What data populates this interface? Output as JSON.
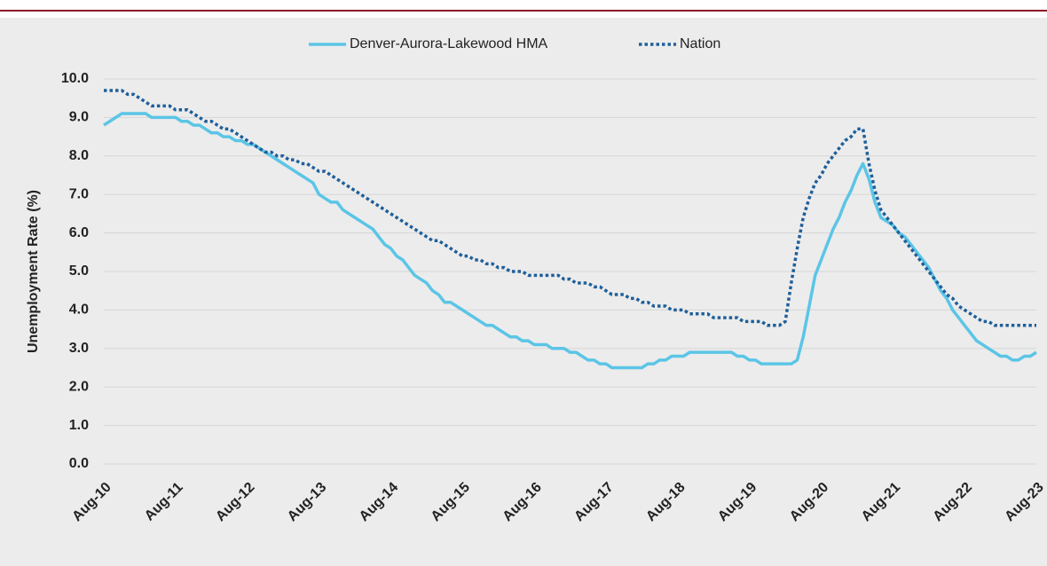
{
  "chart_data": {
    "type": "line",
    "y_label": "Unemployment Rate (%)",
    "categories": [
      "Aug-10",
      null,
      null,
      null,
      null,
      null,
      null,
      null,
      null,
      null,
      null,
      null,
      "Aug-11",
      null,
      null,
      null,
      null,
      null,
      null,
      null,
      null,
      null,
      null,
      null,
      "Aug-12",
      null,
      null,
      null,
      null,
      null,
      null,
      null,
      null,
      null,
      null,
      null,
      "Aug-13",
      null,
      null,
      null,
      null,
      null,
      null,
      null,
      null,
      null,
      null,
      null,
      "Aug-14",
      null,
      null,
      null,
      null,
      null,
      null,
      null,
      null,
      null,
      null,
      null,
      "Aug-15",
      null,
      null,
      null,
      null,
      null,
      null,
      null,
      null,
      null,
      null,
      null,
      "Aug-16",
      null,
      null,
      null,
      null,
      null,
      null,
      null,
      null,
      null,
      null,
      null,
      "Aug-17",
      null,
      null,
      null,
      null,
      null,
      null,
      null,
      null,
      null,
      null,
      null,
      "Aug-18",
      null,
      null,
      null,
      null,
      null,
      null,
      null,
      null,
      null,
      null,
      null,
      "Aug-19",
      null,
      null,
      null,
      null,
      null,
      null,
      null,
      null,
      null,
      null,
      null,
      "Aug-20",
      null,
      null,
      null,
      null,
      null,
      null,
      null,
      null,
      null,
      null,
      null,
      "Aug-21",
      null,
      null,
      null,
      null,
      null,
      null,
      null,
      null,
      null,
      null,
      null,
      "Aug-22",
      null,
      null,
      null,
      null,
      null,
      null,
      null,
      null,
      null,
      null,
      null,
      "Aug-23"
    ],
    "series": [
      {
        "name": "Denver-Aurora-Lakewood HMA",
        "color": "#5bc5e6",
        "style": "solid",
        "values": [
          8.8,
          8.9,
          9.0,
          9.1,
          9.1,
          9.1,
          9.1,
          9.1,
          9.0,
          9.0,
          9.0,
          9.0,
          9.0,
          8.9,
          8.9,
          8.8,
          8.8,
          8.7,
          8.6,
          8.6,
          8.5,
          8.5,
          8.4,
          8.4,
          8.3,
          8.3,
          8.2,
          8.1,
          8.0,
          7.9,
          7.8,
          7.7,
          7.6,
          7.5,
          7.4,
          7.3,
          7.0,
          6.9,
          6.8,
          6.8,
          6.6,
          6.5,
          6.4,
          6.3,
          6.2,
          6.1,
          5.9,
          5.7,
          5.6,
          5.4,
          5.3,
          5.1,
          4.9,
          4.8,
          4.7,
          4.5,
          4.4,
          4.2,
          4.2,
          4.1,
          4.0,
          3.9,
          3.8,
          3.7,
          3.6,
          3.6,
          3.5,
          3.4,
          3.3,
          3.3,
          3.2,
          3.2,
          3.1,
          3.1,
          3.1,
          3.0,
          3.0,
          3.0,
          2.9,
          2.9,
          2.8,
          2.7,
          2.7,
          2.6,
          2.6,
          2.5,
          2.5,
          2.5,
          2.5,
          2.5,
          2.5,
          2.6,
          2.6,
          2.7,
          2.7,
          2.8,
          2.8,
          2.8,
          2.9,
          2.9,
          2.9,
          2.9,
          2.9,
          2.9,
          2.9,
          2.9,
          2.8,
          2.8,
          2.7,
          2.7,
          2.6,
          2.6,
          2.6,
          2.6,
          2.6,
          2.6,
          2.7,
          3.3,
          4.1,
          4.9,
          5.3,
          5.7,
          6.1,
          6.4,
          6.8,
          7.1,
          7.5,
          7.8,
          7.4,
          6.8,
          6.4,
          6.3,
          6.2,
          6.0,
          5.9,
          5.7,
          5.5,
          5.3,
          5.1,
          4.8,
          4.5,
          4.3,
          4.0,
          3.8,
          3.6,
          3.4,
          3.2,
          3.1,
          3.0,
          2.9,
          2.8,
          2.8,
          2.7,
          2.7,
          2.8,
          2.8,
          2.9
        ]
      },
      {
        "name": "Nation",
        "color": "#1f5f9a",
        "style": "dotted",
        "values": [
          9.7,
          9.7,
          9.7,
          9.7,
          9.6,
          9.6,
          9.5,
          9.4,
          9.3,
          9.3,
          9.3,
          9.3,
          9.2,
          9.2,
          9.2,
          9.1,
          9.0,
          8.9,
          8.9,
          8.8,
          8.7,
          8.7,
          8.6,
          8.5,
          8.4,
          8.3,
          8.2,
          8.1,
          8.1,
          8.0,
          8.0,
          7.9,
          7.9,
          7.8,
          7.8,
          7.7,
          7.6,
          7.6,
          7.5,
          7.4,
          7.3,
          7.2,
          7.1,
          7.0,
          6.9,
          6.8,
          6.7,
          6.6,
          6.5,
          6.4,
          6.3,
          6.2,
          6.1,
          6.0,
          5.9,
          5.8,
          5.8,
          5.7,
          5.6,
          5.5,
          5.4,
          5.4,
          5.3,
          5.3,
          5.2,
          5.2,
          5.1,
          5.1,
          5.0,
          5.0,
          5.0,
          4.9,
          4.9,
          4.9,
          4.9,
          4.9,
          4.9,
          4.8,
          4.8,
          4.7,
          4.7,
          4.7,
          4.6,
          4.6,
          4.5,
          4.4,
          4.4,
          4.4,
          4.3,
          4.3,
          4.2,
          4.2,
          4.1,
          4.1,
          4.1,
          4.0,
          4.0,
          4.0,
          3.9,
          3.9,
          3.9,
          3.9,
          3.8,
          3.8,
          3.8,
          3.8,
          3.8,
          3.7,
          3.7,
          3.7,
          3.7,
          3.6,
          3.6,
          3.6,
          3.7,
          4.7,
          5.6,
          6.4,
          6.9,
          7.3,
          7.5,
          7.8,
          8.0,
          8.2,
          8.4,
          8.5,
          8.7,
          8.7,
          7.8,
          7.1,
          6.6,
          6.4,
          6.2,
          6.0,
          5.8,
          5.6,
          5.4,
          5.2,
          5.0,
          4.8,
          4.6,
          4.4,
          4.3,
          4.1,
          4.0,
          3.9,
          3.8,
          3.7,
          3.7,
          3.6,
          3.6,
          3.6,
          3.6,
          3.6,
          3.6,
          3.6,
          3.6
        ]
      }
    ],
    "ylim": [
      0,
      10
    ],
    "yticks": [
      {
        "value": 0,
        "label": "0.0"
      },
      {
        "value": 1,
        "label": "1.0"
      },
      {
        "value": 2,
        "label": "2.0"
      },
      {
        "value": 3,
        "label": "3.0"
      },
      {
        "value": 4,
        "label": "4.0"
      },
      {
        "value": 5,
        "label": "5.0"
      },
      {
        "value": 6,
        "label": "6.0"
      },
      {
        "value": 7,
        "label": "7.0"
      },
      {
        "value": 8,
        "label": "8.0"
      },
      {
        "value": 9,
        "label": "9.0"
      },
      {
        "value": 10,
        "label": "10.0"
      }
    ],
    "grid": true,
    "legend": "top"
  }
}
